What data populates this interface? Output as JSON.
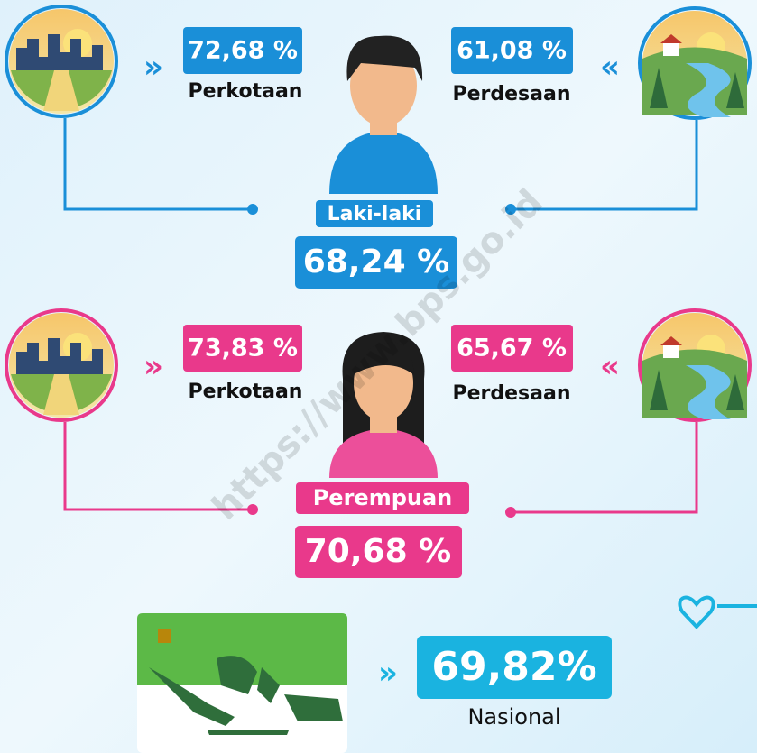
{
  "male": {
    "label": "Laki-laki",
    "total": "68,24 %",
    "urban": {
      "value": "72,68 %",
      "label": "Perkotaan"
    },
    "rural": {
      "value": "61,08 %",
      "label": "Perdesaan"
    }
  },
  "female": {
    "label": "Perempuan",
    "total": "70,68 %",
    "urban": {
      "value": "73,83 %",
      "label": "Perkotaan"
    },
    "rural": {
      "value": "65,67 %",
      "label": "Perdesaan"
    }
  },
  "national": {
    "value": "69,82%",
    "label": "Nasional"
  },
  "watermark": "https://www.bps.go.id"
}
